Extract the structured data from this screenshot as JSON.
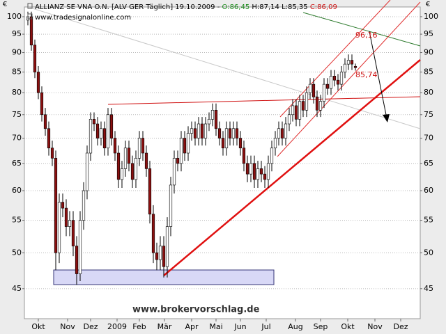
{
  "chart_data": {
    "type": "candlestick",
    "header": [
      "ALLIANZ SE VNA O.N. [ALV GER  Täglich] 19.10.2009 - ",
      "O:86,45",
      " H:87,14 L:85,35 ",
      "C:86,09"
    ],
    "subtitle": "www.tradesignalonline.com",
    "watermark": "www.brokervorschlag.de",
    "currency": "€",
    "annotations": [
      "96,16",
      "85,74"
    ],
    "log_y": true,
    "grid": true,
    "up_color": "#ffffff",
    "down_color": "#8b1010",
    "ylim": [
      41.2,
      102.9
    ],
    "yticks": [
      45,
      50,
      55,
      60,
      65,
      70,
      75,
      80,
      85,
      90,
      95,
      100
    ],
    "xlim": [
      -1,
      112.6
    ],
    "xticks": [
      {
        "value": 3,
        "label": "Okt"
      },
      {
        "value": 11.4,
        "label": "Nov"
      },
      {
        "value": 18,
        "label": "Dez"
      },
      {
        "value": 25.6,
        "label": "2009"
      },
      {
        "value": 32,
        "label": "Feb"
      },
      {
        "value": 39.2,
        "label": "Mär"
      },
      {
        "value": 47,
        "label": "Apr"
      },
      {
        "value": 54,
        "label": "Mai"
      },
      {
        "value": 61,
        "label": "Jun"
      },
      {
        "value": 68.4,
        "label": "Jul"
      },
      {
        "value": 76.8,
        "label": "Aug"
      },
      {
        "value": 84,
        "label": "Sep"
      },
      {
        "value": 91.8,
        "label": "Okt"
      },
      {
        "value": 99.6,
        "label": "Nov"
      },
      {
        "value": 107,
        "label": "Dez"
      }
    ],
    "open": [
      99,
      100,
      92,
      85,
      80,
      75,
      72,
      68,
      66,
      50,
      58,
      57,
      54,
      55,
      51,
      47,
      55,
      60,
      67,
      74,
      73,
      70,
      72,
      68,
      75,
      70,
      67,
      62,
      64,
      68,
      65,
      62,
      66,
      70,
      67,
      64,
      56,
      50,
      49,
      51,
      48,
      54,
      61,
      66,
      65,
      70,
      67,
      71,
      72,
      70,
      73,
      70,
      73,
      74,
      76,
      72,
      70,
      68,
      72,
      70,
      72,
      70,
      68,
      65,
      63,
      65,
      62,
      64,
      63,
      62,
      65,
      68,
      70,
      72,
      70,
      73,
      75,
      77,
      74,
      78,
      76,
      80,
      82,
      79,
      76,
      78,
      82,
      81,
      84,
      83,
      82,
      85,
      87,
      88,
      86.45
    ],
    "high": [
      101.5,
      101.5,
      93.5,
      86.5,
      81.5,
      76.5,
      73.5,
      69.5,
      67.5,
      59.5,
      59.5,
      58.5,
      56.5,
      56.5,
      52.5,
      56.5,
      61.5,
      68.5,
      75.5,
      75.5,
      74.5,
      73.5,
      73.5,
      76.5,
      76.5,
      71.5,
      68.5,
      65.5,
      69.5,
      69.5,
      66.5,
      67.5,
      71.5,
      71.5,
      68.5,
      65.5,
      57.5,
      51.5,
      52.5,
      52.5,
      55.5,
      62.5,
      67.5,
      67.5,
      71.5,
      71.5,
      72.5,
      73.5,
      73.5,
      74.5,
      74.5,
      74.5,
      75.5,
      77.5,
      77.5,
      73.5,
      71.5,
      73.5,
      73.5,
      73.5,
      73.5,
      71.5,
      69.5,
      66.5,
      66.5,
      66.5,
      65.5,
      65.5,
      64.5,
      66.5,
      69.5,
      71.5,
      73.5,
      73.5,
      74.5,
      76.5,
      78.5,
      78.5,
      79.5,
      79.5,
      81.5,
      83.5,
      83.5,
      80.5,
      79.5,
      83.5,
      83.5,
      85.5,
      85.5,
      84.5,
      86.5,
      88.5,
      89.5,
      89.5,
      87.14
    ],
    "low": [
      97.5,
      90.5,
      83.5,
      78.5,
      73.5,
      70.5,
      66.5,
      64.5,
      47.5,
      48.5,
      55.5,
      52.5,
      52.5,
      49.5,
      45.5,
      46,
      53.5,
      58.5,
      65.5,
      71.5,
      68.5,
      68.5,
      66.5,
      66.5,
      68.5,
      65.5,
      60.5,
      60.5,
      62.5,
      63.5,
      60.5,
      60.5,
      64.5,
      65.5,
      62.5,
      54.5,
      48.5,
      47.5,
      47.5,
      46.5,
      46.5,
      52.5,
      59.5,
      63.5,
      63.5,
      65.5,
      65.5,
      69.5,
      68.5,
      68.5,
      68.5,
      68.5,
      71.5,
      72.5,
      70.5,
      68.5,
      66.5,
      66.5,
      68.5,
      68.5,
      68.5,
      66.5,
      63.5,
      61.5,
      61.5,
      60.5,
      60.5,
      61.5,
      60.5,
      60.5,
      63.5,
      66.5,
      68.5,
      68.5,
      68.5,
      71.5,
      73.5,
      72.5,
      72.5,
      74.5,
      74.5,
      78.5,
      77.5,
      74.5,
      74.5,
      76.5,
      79.5,
      79.5,
      81.5,
      80.5,
      80.5,
      83.5,
      85.5,
      85.5,
      85.35
    ],
    "close": [
      100,
      92,
      85,
      80,
      75,
      72,
      68,
      66,
      50,
      58,
      57,
      54,
      55,
      51,
      47,
      55,
      60,
      67,
      74,
      73,
      70,
      72,
      68,
      75,
      70,
      67,
      62,
      64,
      68,
      65,
      62,
      66,
      70,
      67,
      64,
      56,
      50,
      49,
      51,
      48,
      54,
      61,
      66,
      65,
      70,
      67,
      71,
      72,
      70,
      73,
      70,
      73,
      74,
      76,
      72,
      70,
      68,
      72,
      70,
      72,
      70,
      68,
      65,
      63,
      65,
      62,
      64,
      63,
      62,
      65,
      68,
      70,
      72,
      70,
      73,
      75,
      77,
      74,
      78,
      76,
      80,
      82,
      79,
      76,
      78,
      82,
      81,
      84,
      83,
      82,
      85,
      87,
      88,
      87,
      86.09
    ]
  }
}
